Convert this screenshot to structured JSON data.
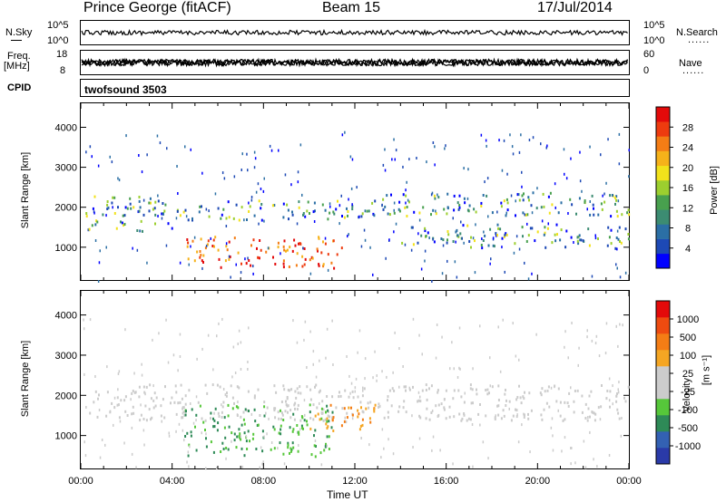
{
  "header": {
    "station": "Prince George (fitACF)",
    "beam": "Beam 15",
    "date": "17/Jul/2014"
  },
  "top_panels": {
    "nsky_label": "N.Sky",
    "nsky_ticks": [
      "10^5",
      "10^0"
    ],
    "nsearch_label": "N.Search",
    "nsearch_ticks": [
      "10^5",
      "10^0"
    ],
    "freq_label": "Freq.",
    "freq_unit": "[MHz]",
    "freq_ticks": [
      "18",
      "8"
    ],
    "nave_label": "Nave",
    "nave_ticks": [
      "60",
      "0"
    ],
    "cpid_label": "CPID",
    "cpid_value": "twofsound 3503",
    "dots": "......"
  },
  "chart_data": [
    {
      "type": "heatmap",
      "name": "power",
      "ylabel": "Slant Range [km]",
      "xlabel": "",
      "yticks": [
        1000,
        2000,
        3000,
        4000
      ],
      "ylim": [
        180,
        4600
      ],
      "xlim": [
        0,
        24
      ],
      "colorbar_label": "Power [dB]",
      "colorbar_ticks": [
        "28",
        "24",
        "20",
        "16",
        "12",
        "8",
        "4"
      ],
      "colorbar_colors": [
        "#0000ff",
        "#1d49b5",
        "#2b6fa5",
        "#3c8c72",
        "#48a04e",
        "#9ccf2f",
        "#f2e21b",
        "#f6b21a",
        "#f47d15",
        "#ee3b0f",
        "#e30a0a"
      ],
      "bands": [
        {
          "t0": 0.2,
          "t1": 4.5,
          "r0": 1400,
          "r1": 2300
        },
        {
          "t0": 4.5,
          "t1": 13,
          "r0": 1700,
          "r1": 2200
        },
        {
          "t0": 13,
          "t1": 24,
          "r0": 1800,
          "r1": 2400
        },
        {
          "t0": 14,
          "t1": 24,
          "r0": 1000,
          "r1": 1600
        },
        {
          "t0": 4.5,
          "t1": 11.5,
          "r0": 500,
          "r1": 1300
        }
      ]
    },
    {
      "type": "heatmap",
      "name": "velocity",
      "ylabel": "Slant Range [km]",
      "xlabel": "Time UT",
      "yticks": [
        1000,
        2000,
        3000,
        4000
      ],
      "ylim": [
        180,
        4600
      ],
      "xlim": [
        0,
        24
      ],
      "xtick_labels": [
        "00:00",
        "04:00",
        "08:00",
        "12:00",
        "16:00",
        "20:00",
        "00:00"
      ],
      "colorbar_label": "Velocity",
      "colorbar_unit": "[m s⁻¹]",
      "colorbar_ticks": [
        "1000",
        "500",
        "100",
        "25",
        "-25",
        "-100",
        "-500",
        "-1000"
      ],
      "colorbar_colors": [
        "#2a3aa8",
        "#3361b3",
        "#2e8a57",
        "#56c73a",
        "#cccccc",
        "#cccccc",
        "#f5a623",
        "#f47d15",
        "#ee4b10",
        "#e30a0a"
      ],
      "bands": [
        {
          "t0": 0.2,
          "t1": 24,
          "r0": 1400,
          "r1": 2300
        },
        {
          "t0": 4.5,
          "t1": 11,
          "r0": 500,
          "r1": 1800
        },
        {
          "t0": 10,
          "t1": 13,
          "r0": 1100,
          "r1": 1800
        }
      ]
    }
  ]
}
